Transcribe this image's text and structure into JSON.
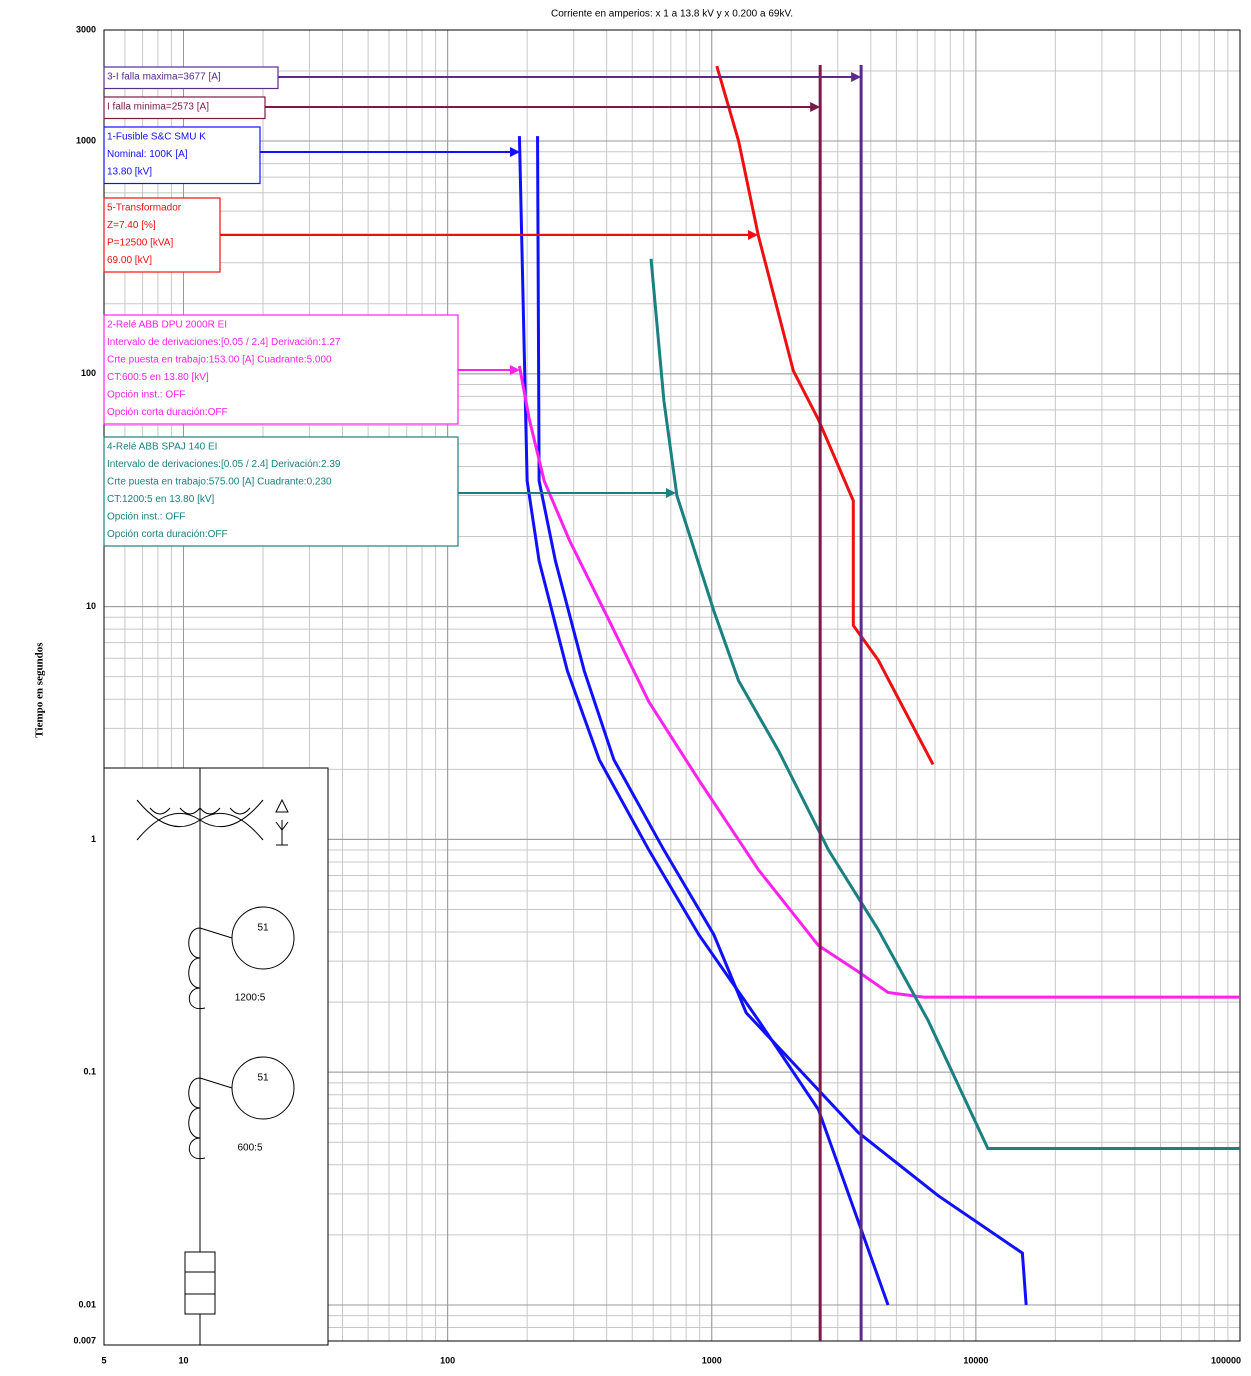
{
  "chart_data": {
    "type": "line",
    "title": "Corriente en amperios: x 1 a 13.8 kV y x 0.200 a 69kV.",
    "y_label": "Tiempo en segundos",
    "log_x": true,
    "log_y": true,
    "grid": true,
    "xlim": [
      5,
      100000
    ],
    "ylim": [
      0.007,
      3000
    ],
    "xticks": [
      5,
      10,
      100,
      1000,
      10000,
      100000
    ],
    "yticks": [
      3000,
      1000,
      100,
      10,
      1,
      0.1,
      0.01,
      0.007
    ],
    "series": [
      {
        "color": "#1010ff",
        "x": [
          187,
          200,
          222,
          284,
          375,
          578,
          893,
          1503,
          2535,
          4650,
          4650
        ],
        "values": [
          1050,
          34.7,
          15.7,
          5.3,
          2.2,
          0.9,
          0.39,
          0.167,
          0.069,
          0.01,
          0.01
        ]
      },
      {
        "color": "#1010ff",
        "x": [
          219,
          222,
          256,
          329,
          426,
          659,
          1018,
          1350,
          3590,
          7190,
          15000,
          15500
        ],
        "values": [
          1050,
          34.7,
          15.7,
          5.3,
          2.2,
          0.9,
          0.39,
          0.18,
          0.055,
          0.0295,
          0.0167,
          0.01
        ]
      },
      {
        "color": "#ee1010",
        "x": [
          1045,
          1264,
          1503,
          2037,
          2535,
          3435,
          3435,
          4265,
          6880
        ],
        "values": [
          2100,
          1000,
          390,
          103,
          63.5,
          28.5,
          8.3,
          5.9,
          2.1
        ]
      },
      {
        "color": "#ff22ee",
        "x": [
          187,
          204,
          232,
          289,
          409,
          578,
          893,
          1503,
          2535,
          3590,
          4650,
          6310,
          100000
        ],
        "values": [
          108,
          63.5,
          34.7,
          19.3,
          8.7,
          3.9,
          1.8,
          0.74,
          0.35,
          0.27,
          0.22,
          0.21,
          0.21
        ]
      },
      {
        "color": "#1a8080",
        "x": [
          589,
          659,
          738,
          1018,
          1264,
          1791,
          2767,
          4265,
          6590,
          11100,
          100000
        ],
        "values": [
          312,
          76.5,
          30,
          9.6,
          4.8,
          2.4,
          0.9,
          0.41,
          0.167,
          0.047,
          0.047
        ]
      }
    ],
    "vlines": [
      {
        "x": 3677,
        "color": "#5b2a8c"
      },
      {
        "x": 2573,
        "color": "#7b1948"
      }
    ],
    "annotations": [
      {
        "color": "#5b2a8c",
        "lines": [
          "3-I falla maxima=3677 [A]"
        ]
      },
      {
        "color": "#7b1948",
        "lines": [
          "I falla minima=2573 [A]"
        ]
      },
      {
        "color": "#1010ff",
        "lines": [
          "1-Fusible S&C SMU K",
          "Nominal: 100K [A]",
          "13.80 [kV]"
        ]
      },
      {
        "color": "#ee1010",
        "lines": [
          "5-Transformador",
          "Z=7.40 [%]",
          "P=12500 [kVA]",
          "69.00 [kV]"
        ]
      },
      {
        "color": "#ff22ee",
        "lines": [
          "2-Relé  ABB DPU 2000R EI",
          "Intervalo de derivaciones:[0.05 / 2.4] Derivación:1.27",
          "Crte puesta en trabajo:153.00 [A] Cuadrante:5.000",
          "CT:600:5 en 13.80 [kV]",
          "Opción inst.: OFF",
          "Opción corta duración:OFF"
        ]
      },
      {
        "color": "#1a8080",
        "lines": [
          "4-Relé  ABB SPAJ 140 EI",
          "Intervalo de derivaciones:[0.05 / 2.4] Derivación:2.39",
          "Crte puesta en trabajo:575.00 [A] Cuadrante:0.230",
          "CT:1200:5 en 13.80 [kV]",
          "Opción inst.: OFF",
          "Opción corta duración:OFF"
        ]
      }
    ],
    "inset": {
      "labels": [
        "51",
        "1200:5",
        "51",
        "600:5"
      ]
    }
  }
}
